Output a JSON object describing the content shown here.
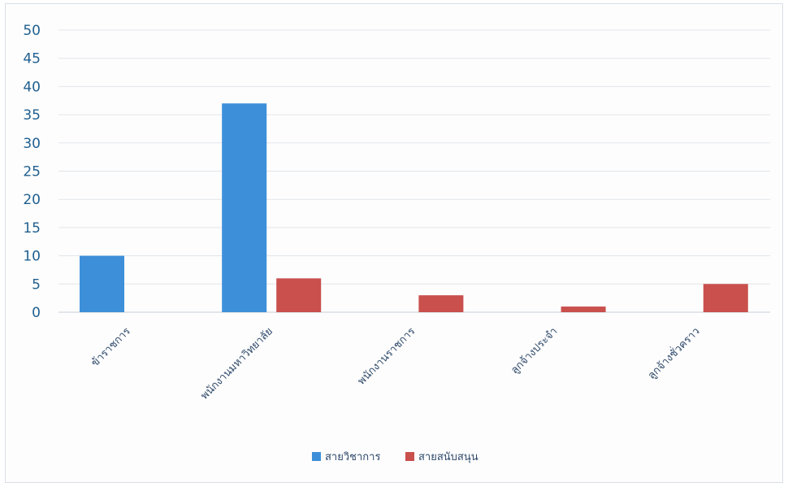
{
  "chart_data": {
    "type": "bar",
    "categories": [
      "ข้าราชการ",
      "พนักงานมหาวิทยาลัย",
      "พนักงานราชการ",
      "ลูกจ้างประจำ",
      "ลูกจ้างชั่วคราว"
    ],
    "series": [
      {
        "name": "สายวิชาการ",
        "values": [
          10,
          37,
          0,
          0,
          0
        ],
        "color": "#3d8fd9"
      },
      {
        "name": "สายสนับสนุน",
        "values": [
          0,
          6,
          3,
          1,
          5
        ],
        "color": "#c9504d"
      }
    ],
    "ylim": [
      0,
      50
    ],
    "yticks": [
      0,
      5,
      10,
      15,
      20,
      25,
      30,
      35,
      40,
      45,
      50
    ],
    "grid": true,
    "legend": "bottom",
    "xlabel": "",
    "ylabel": "",
    "title": ""
  }
}
